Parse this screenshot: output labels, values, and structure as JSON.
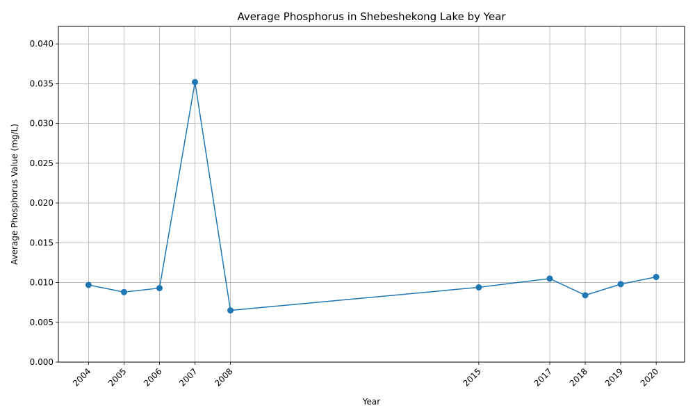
{
  "chart_data": {
    "type": "line",
    "title": "Average Phosphorus in Shebeshekong Lake by Year",
    "xlabel": "Year",
    "ylabel": "Average Phosphorus Value (mg/L)",
    "x": [
      2004,
      2005,
      2006,
      2007,
      2008,
      2015,
      2017,
      2018,
      2019,
      2020
    ],
    "x_tick_labels": [
      "2004",
      "2005",
      "2006",
      "2007",
      "2008",
      "2015",
      "2017",
      "2018",
      "2019",
      "2020"
    ],
    "series": [
      {
        "values": [
          0.0097,
          0.0088,
          0.0093,
          0.0352,
          0.0065,
          0.0094,
          0.0105,
          0.0084,
          0.0098,
          0.0107
        ],
        "color": "#1f77b4",
        "marker": "circle"
      }
    ],
    "xlim": [
      2003.15,
      2020.8
    ],
    "ylim": [
      0,
      0.0422
    ],
    "y_ticks": [
      0,
      0.005,
      0.01,
      0.015,
      0.02,
      0.025,
      0.03,
      0.035,
      0.04
    ],
    "y_tick_labels": [
      "0.000",
      "0.005",
      "0.010",
      "0.015",
      "0.020",
      "0.025",
      "0.030",
      "0.035",
      "0.040"
    ],
    "grid": true,
    "grid_color": "#b0b0b0",
    "legend": "none"
  }
}
